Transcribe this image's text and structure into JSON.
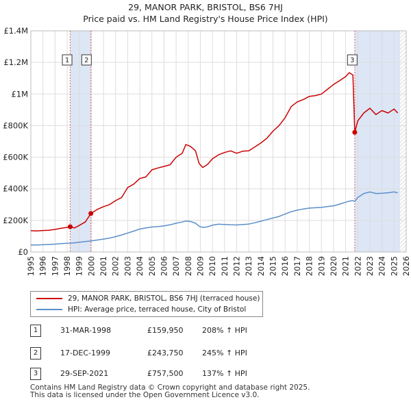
{
  "title": {
    "line1": "29, MANOR PARK, BRISTOL, BS6 7HJ",
    "line2": "Price paid vs. HM Land Registry's House Price Index (HPI)"
  },
  "colors": {
    "price_line": "#cc0000",
    "hpi_line": "#5b8ec9",
    "span_fill": "#dce6f5",
    "grid": "#dddddd",
    "marker_line": "#e06060"
  },
  "chart_data": {
    "type": "line",
    "ylim": [
      0,
      1400000
    ],
    "xlim": [
      1995,
      2026
    ],
    "y_ticks": [
      {
        "value": 0,
        "label": "£0"
      },
      {
        "value": 200000,
        "label": "£200K"
      },
      {
        "value": 400000,
        "label": "£400K"
      },
      {
        "value": 600000,
        "label": "£600K"
      },
      {
        "value": 800000,
        "label": "£800K"
      },
      {
        "value": 1000000,
        "label": "£1M"
      },
      {
        "value": 1200000,
        "label": "£1.2M"
      },
      {
        "value": 1400000,
        "label": "£1.4M"
      }
    ],
    "x_ticks": [
      "1995",
      "1996",
      "1997",
      "1998",
      "1999",
      "2000",
      "2001",
      "2002",
      "2003",
      "2004",
      "2005",
      "2006",
      "2007",
      "2008",
      "2009",
      "2010",
      "2011",
      "2012",
      "2013",
      "2014",
      "2015",
      "2016",
      "2017",
      "2018",
      "2019",
      "2020",
      "2021",
      "2022",
      "2023",
      "2024",
      "2025",
      "2026"
    ],
    "shaded_spans": [
      [
        1998.25,
        1999.96
      ],
      [
        2021.75,
        2025.5
      ]
    ],
    "series": [
      {
        "name": "29, MANOR PARK, BRISTOL, BS6 7HJ (terraced house)",
        "color": "#cc0000",
        "points": [
          [
            1995.0,
            135000
          ],
          [
            1995.5,
            133000
          ],
          [
            1996.0,
            136000
          ],
          [
            1996.5,
            138000
          ],
          [
            1997.0,
            143000
          ],
          [
            1997.5,
            150000
          ],
          [
            1998.0,
            156000
          ],
          [
            1998.25,
            159950
          ],
          [
            1998.6,
            152000
          ],
          [
            1999.0,
            168000
          ],
          [
            1999.5,
            190000
          ],
          [
            1999.96,
            243750
          ],
          [
            2000.5,
            270000
          ],
          [
            2001.0,
            287000
          ],
          [
            2001.5,
            300000
          ],
          [
            2002.0,
            325000
          ],
          [
            2002.5,
            345000
          ],
          [
            2003.0,
            408000
          ],
          [
            2003.5,
            430000
          ],
          [
            2004.0,
            465000
          ],
          [
            2004.5,
            475000
          ],
          [
            2005.0,
            520000
          ],
          [
            2005.5,
            532000
          ],
          [
            2006.0,
            542000
          ],
          [
            2006.5,
            552000
          ],
          [
            2007.0,
            600000
          ],
          [
            2007.5,
            625000
          ],
          [
            2007.8,
            680000
          ],
          [
            2008.2,
            668000
          ],
          [
            2008.6,
            640000
          ],
          [
            2008.9,
            560000
          ],
          [
            2009.2,
            535000
          ],
          [
            2009.6,
            555000
          ],
          [
            2010.0,
            590000
          ],
          [
            2010.5,
            615000
          ],
          [
            2011.0,
            630000
          ],
          [
            2011.5,
            640000
          ],
          [
            2012.0,
            625000
          ],
          [
            2012.5,
            638000
          ],
          [
            2013.0,
            640000
          ],
          [
            2013.5,
            665000
          ],
          [
            2014.0,
            690000
          ],
          [
            2014.5,
            720000
          ],
          [
            2015.0,
            765000
          ],
          [
            2015.5,
            800000
          ],
          [
            2016.0,
            850000
          ],
          [
            2016.5,
            920000
          ],
          [
            2017.0,
            950000
          ],
          [
            2017.5,
            965000
          ],
          [
            2018.0,
            985000
          ],
          [
            2018.5,
            990000
          ],
          [
            2019.0,
            1000000
          ],
          [
            2019.5,
            1030000
          ],
          [
            2020.0,
            1060000
          ],
          [
            2020.5,
            1085000
          ],
          [
            2021.0,
            1110000
          ],
          [
            2021.3,
            1135000
          ],
          [
            2021.6,
            1120000
          ],
          [
            2021.75,
            757500
          ],
          [
            2022.0,
            830000
          ],
          [
            2022.5,
            880000
          ],
          [
            2023.0,
            910000
          ],
          [
            2023.5,
            870000
          ],
          [
            2024.0,
            895000
          ],
          [
            2024.5,
            880000
          ],
          [
            2025.0,
            905000
          ],
          [
            2025.3,
            880000
          ]
        ]
      },
      {
        "name": "HPI: Average price, terraced house, City of Bristol",
        "color": "#5b8ec9",
        "points": [
          [
            1995.0,
            44000
          ],
          [
            1995.5,
            44500
          ],
          [
            1996.0,
            46000
          ],
          [
            1996.5,
            47500
          ],
          [
            1997.0,
            50000
          ],
          [
            1997.5,
            53000
          ],
          [
            1998.0,
            55000
          ],
          [
            1998.25,
            56000
          ],
          [
            1998.6,
            58000
          ],
          [
            1999.0,
            62000
          ],
          [
            1999.5,
            66000
          ],
          [
            1999.96,
            70000
          ],
          [
            2000.5,
            76000
          ],
          [
            2001.0,
            82000
          ],
          [
            2001.5,
            88000
          ],
          [
            2002.0,
            97000
          ],
          [
            2002.5,
            108000
          ],
          [
            2003.0,
            120000
          ],
          [
            2003.5,
            132000
          ],
          [
            2004.0,
            145000
          ],
          [
            2004.5,
            152000
          ],
          [
            2005.0,
            158000
          ],
          [
            2005.5,
            161000
          ],
          [
            2006.0,
            165000
          ],
          [
            2006.5,
            172000
          ],
          [
            2007.0,
            182000
          ],
          [
            2007.5,
            190000
          ],
          [
            2007.8,
            196000
          ],
          [
            2008.2,
            193000
          ],
          [
            2008.6,
            182000
          ],
          [
            2008.9,
            163000
          ],
          [
            2009.2,
            155000
          ],
          [
            2009.6,
            160000
          ],
          [
            2010.0,
            170000
          ],
          [
            2010.5,
            176000
          ],
          [
            2011.0,
            174000
          ],
          [
            2011.5,
            172000
          ],
          [
            2012.0,
            171000
          ],
          [
            2012.5,
            174000
          ],
          [
            2013.0,
            177000
          ],
          [
            2013.5,
            185000
          ],
          [
            2014.0,
            195000
          ],
          [
            2014.5,
            205000
          ],
          [
            2015.0,
            215000
          ],
          [
            2015.5,
            225000
          ],
          [
            2016.0,
            240000
          ],
          [
            2016.5,
            255000
          ],
          [
            2017.0,
            265000
          ],
          [
            2017.5,
            272000
          ],
          [
            2018.0,
            278000
          ],
          [
            2018.5,
            280000
          ],
          [
            2019.0,
            282000
          ],
          [
            2019.5,
            288000
          ],
          [
            2020.0,
            292000
          ],
          [
            2020.5,
            303000
          ],
          [
            2021.0,
            315000
          ],
          [
            2021.3,
            322000
          ],
          [
            2021.6,
            325000
          ],
          [
            2021.75,
            320000
          ],
          [
            2022.0,
            345000
          ],
          [
            2022.5,
            370000
          ],
          [
            2023.0,
            380000
          ],
          [
            2023.5,
            370000
          ],
          [
            2024.0,
            372000
          ],
          [
            2024.5,
            375000
          ],
          [
            2025.0,
            380000
          ],
          [
            2025.3,
            375000
          ]
        ]
      }
    ],
    "sale_markers": [
      {
        "label": "1",
        "x": 1998.25,
        "value": 159950
      },
      {
        "label": "2",
        "x": 1999.96,
        "value": 243750
      },
      {
        "label": "3",
        "x": 2021.75,
        "value": 757500
      }
    ]
  },
  "legend": {
    "price_label": "29, MANOR PARK, BRISTOL, BS6 7HJ (terraced house)",
    "hpi_label": "HPI: Average price, terraced house, City of Bristol"
  },
  "transactions": [
    {
      "num": "1",
      "date": "31-MAR-1998",
      "price": "£159,950",
      "pct": "208% ↑ HPI"
    },
    {
      "num": "2",
      "date": "17-DEC-1999",
      "price": "£243,750",
      "pct": "245% ↑ HPI"
    },
    {
      "num": "3",
      "date": "29-SEP-2021",
      "price": "£757,500",
      "pct": "137% ↑ HPI"
    }
  ],
  "footer": {
    "line1": "Contains HM Land Registry data © Crown copyright and database right 2025.",
    "line2": "This data is licensed under the Open Government Licence v3.0."
  }
}
